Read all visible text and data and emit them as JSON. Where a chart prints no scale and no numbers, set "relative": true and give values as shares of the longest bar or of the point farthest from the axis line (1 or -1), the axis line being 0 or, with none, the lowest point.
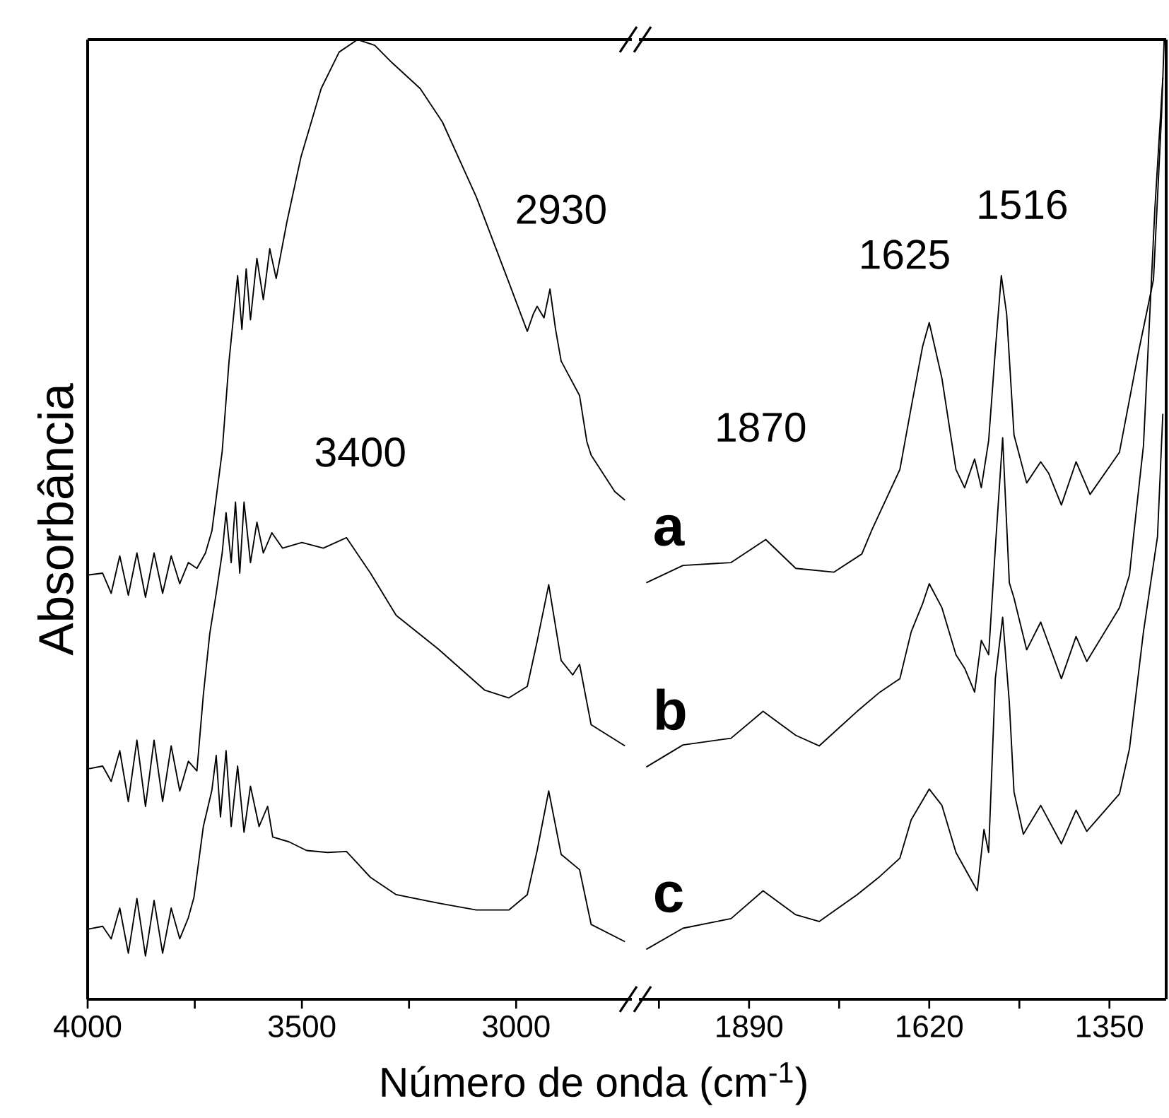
{
  "chart_data": [
    {
      "type": "line",
      "relative": true,
      "ylabel": "Absorbância",
      "xlabel": "Número de onda (cm$^{-1}$)",
      "xlim": [
        4000,
        2730
      ],
      "xticks": [
        4000,
        {
          "value": 3750,
          "label": null
        },
        3500,
        {
          "value": 3250,
          "label": null
        },
        3000
      ],
      "annotations": [
        "3400",
        "2930"
      ],
      "series": [
        {
          "color": "#000000",
          "x": [
            4000,
            3965,
            3945,
            3925,
            3905,
            3885,
            3865,
            3845,
            3825,
            3805,
            3785,
            3765,
            3745,
            3725,
            3710,
            3686,
            3670,
            3650,
            3640,
            3630,
            3620,
            3605,
            3590,
            3575,
            3560,
            3535,
            3502,
            3455,
            3413,
            3370,
            3330,
            3290,
            3224,
            3172,
            3093,
            3017,
            2974,
            2960,
            2951,
            2935,
            2921,
            2908,
            2895,
            2852,
            2835,
            2825,
            2770,
            2746
          ],
          "values": [
            0.442,
            0.444,
            0.423,
            0.462,
            0.421,
            0.465,
            0.419,
            0.465,
            0.423,
            0.462,
            0.433,
            0.455,
            0.449,
            0.465,
            0.488,
            0.571,
            0.665,
            0.754,
            0.698,
            0.761,
            0.708,
            0.772,
            0.729,
            0.782,
            0.751,
            0.81,
            0.878,
            0.949,
            0.987,
            1,
            0.994,
            0.976,
            0.949,
            0.914,
            0.836,
            0.747,
            0.696,
            0.714,
            0.722,
            0.71,
            0.74,
            0.698,
            0.665,
            0.629,
            0.581,
            0.567,
            0.529,
            0.52
          ]
        },
        {
          "color": "#000000",
          "x": [
            4000,
            3965,
            3945,
            3925,
            3905,
            3885,
            3865,
            3845,
            3825,
            3805,
            3785,
            3765,
            3745,
            3730,
            3715,
            3700,
            3686,
            3677,
            3665,
            3655,
            3645,
            3635,
            3620,
            3605,
            3590,
            3570,
            3545,
            3500,
            3450,
            3396,
            3340,
            3280,
            3182,
            3073,
            3017,
            2974,
            2951,
            2924,
            2895,
            2868,
            2852,
            2825,
            2746
          ],
          "values": [
            0.24,
            0.243,
            0.227,
            0.259,
            0.206,
            0.27,
            0.201,
            0.27,
            0.206,
            0.264,
            0.217,
            0.248,
            0.238,
            0.317,
            0.381,
            0.423,
            0.465,
            0.507,
            0.455,
            0.518,
            0.444,
            0.518,
            0.455,
            0.497,
            0.465,
            0.486,
            0.47,
            0.476,
            0.47,
            0.481,
            0.444,
            0.4,
            0.365,
            0.322,
            0.314,
            0.326,
            0.373,
            0.432,
            0.353,
            0.338,
            0.349,
            0.286,
            0.264
          ]
        },
        {
          "color": "#000000",
          "x": [
            4000,
            3965,
            3945,
            3925,
            3905,
            3885,
            3865,
            3845,
            3825,
            3805,
            3785,
            3765,
            3752,
            3730,
            3710,
            3700,
            3690,
            3677,
            3665,
            3650,
            3635,
            3620,
            3600,
            3580,
            3568,
            3530,
            3489,
            3440,
            3396,
            3340,
            3280,
            3180,
            3093,
            3017,
            2974,
            2951,
            2924,
            2895,
            2852,
            2825,
            2746
          ],
          "values": [
            0.073,
            0.076,
            0.063,
            0.095,
            0.048,
            0.105,
            0.045,
            0.103,
            0.048,
            0.095,
            0.063,
            0.085,
            0.106,
            0.18,
            0.218,
            0.254,
            0.19,
            0.259,
            0.18,
            0.243,
            0.174,
            0.222,
            0.18,
            0.201,
            0.169,
            0.164,
            0.155,
            0.153,
            0.154,
            0.127,
            0.109,
            0.1,
            0.093,
            0.093,
            0.109,
            0.155,
            0.217,
            0.151,
            0.135,
            0.078,
            0.06
          ]
        }
      ]
    },
    {
      "type": "line",
      "relative": true,
      "xlim": [
        2055,
        1265
      ],
      "xticks": [
        {
          "value": 2025,
          "label": null
        },
        1890,
        {
          "value": 1755,
          "label": null
        },
        1620,
        {
          "value": 1485,
          "label": null
        },
        1350
      ],
      "annotations": [
        "1870",
        "1625",
        "1516"
      ],
      "series": [
        {
          "name": "a",
          "color": "#000000",
          "x": [
            2044,
            1989,
            1917,
            1865,
            1820,
            1763,
            1721,
            1706,
            1664,
            1647,
            1630,
            1620,
            1601,
            1580,
            1567,
            1552,
            1542,
            1531,
            1521,
            1512,
            1504,
            1493,
            1474,
            1453,
            1441,
            1422,
            1400,
            1379,
            1335,
            1306,
            1284,
            1272,
            1268
          ],
          "values": [
            0.434,
            0.452,
            0.455,
            0.479,
            0.449,
            0.445,
            0.464,
            0.489,
            0.552,
            0.617,
            0.68,
            0.705,
            0.647,
            0.552,
            0.533,
            0.563,
            0.533,
            0.582,
            0.676,
            0.754,
            0.714,
            0.588,
            0.538,
            0.56,
            0.548,
            0.515,
            0.56,
            0.526,
            0.57,
            0.676,
            0.75,
            0.92,
            1
          ]
        },
        {
          "name": "b",
          "color": "#000000",
          "x": [
            2044,
            1989,
            1917,
            1869,
            1820,
            1785,
            1728,
            1694,
            1664,
            1647,
            1630,
            1620,
            1601,
            1580,
            1567,
            1552,
            1542,
            1531,
            1521,
            1510,
            1500,
            1493,
            1474,
            1453,
            1422,
            1400,
            1384,
            1335,
            1320,
            1314,
            1299,
            1282,
            1270
          ],
          "values": [
            0.242,
            0.265,
            0.272,
            0.3,
            0.275,
            0.264,
            0.3,
            0.32,
            0.334,
            0.383,
            0.412,
            0.433,
            0.408,
            0.359,
            0.345,
            0.32,
            0.374,
            0.359,
            0.47,
            0.585,
            0.434,
            0.418,
            0.364,
            0.393,
            0.334,
            0.378,
            0.352,
            0.408,
            0.442,
            0.482,
            0.577,
            0.823,
            0.96
          ]
        },
        {
          "name": "c",
          "color": "#000000",
          "x": [
            2044,
            1989,
            1917,
            1869,
            1820,
            1785,
            1728,
            1694,
            1664,
            1647,
            1620,
            1601,
            1580,
            1548,
            1538,
            1531,
            1521,
            1510,
            1500,
            1493,
            1479,
            1453,
            1422,
            1400,
            1384,
            1335,
            1320,
            1299,
            1278,
            1270
          ],
          "values": [
            0.052,
            0.074,
            0.084,
            0.113,
            0.088,
            0.081,
            0.109,
            0.128,
            0.147,
            0.187,
            0.219,
            0.202,
            0.153,
            0.113,
            0.177,
            0.153,
            0.334,
            0.398,
            0.309,
            0.216,
            0.172,
            0.202,
            0.162,
            0.197,
            0.175,
            0.214,
            0.261,
            0.383,
            0.482,
            0.61
          ]
        }
      ]
    }
  ]
}
